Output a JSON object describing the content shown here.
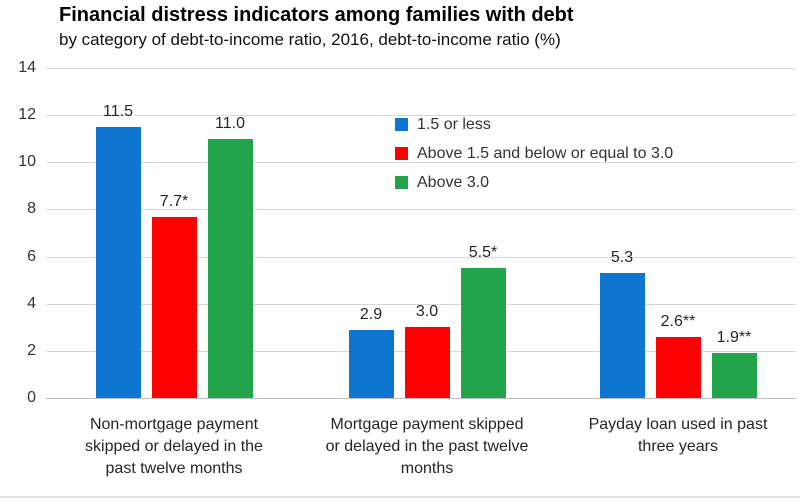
{
  "chart_data": {
    "type": "bar",
    "title": "Financial distress indicators among families with debt",
    "subtitle": "by category of debt-to-income ratio, 2016, debt-to-income ratio (%)",
    "categories": [
      "Non-mortgage payment skipped or delayed in the past twelve months",
      "Mortgage payment skipped or delayed in the past twelve months",
      "Payday loan used in past three years"
    ],
    "category_lines": [
      [
        "Non-mortgage payment",
        "skipped or delayed in the",
        "past twelve months"
      ],
      [
        "Mortgage payment skipped",
        "or delayed in the past twelve",
        "months"
      ],
      [
        "Payday loan used in past",
        "three years"
      ]
    ],
    "series": [
      {
        "name": "1.5 or less",
        "color": "#0e76d1",
        "values": [
          11.5,
          2.9,
          5.3
        ],
        "data_labels": [
          "11.5",
          "2.9",
          "5.3"
        ]
      },
      {
        "name": "Above 1.5 and below or equal to 3.0",
        "color": "#fe0000",
        "values": [
          7.7,
          3.0,
          2.6
        ],
        "data_labels": [
          "7.7*",
          "3.0",
          "2.6**"
        ]
      },
      {
        "name": "Above 3.0",
        "color": "#22a44b",
        "values": [
          11.0,
          5.5,
          1.9
        ],
        "data_labels": [
          "11.0",
          "5.5*",
          "1.9**"
        ]
      }
    ],
    "ylim": [
      0,
      14
    ],
    "yticks": [
      0,
      2,
      4,
      6,
      8,
      10,
      12,
      14
    ],
    "grid": true,
    "legend_position": "inside-top-center"
  },
  "colors": {
    "gridline": "#d9d9d9",
    "axis_line": "#bfbfbf",
    "text": "#333333"
  }
}
